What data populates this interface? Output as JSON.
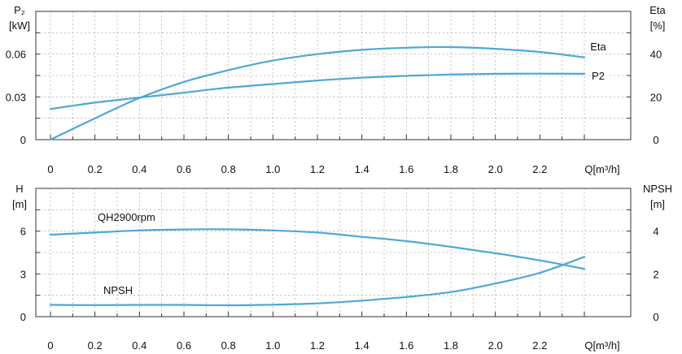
{
  "colors": {
    "curve": "#4ea7d8",
    "frame": "#333333",
    "grid": "#9a9a9a"
  },
  "chart_data": [
    {
      "type": "line",
      "left_axis": {
        "label_line1": "P₂",
        "label_line2": "[kW]",
        "range": [
          0,
          0.09
        ],
        "ticks": [
          "0",
          "0.03",
          "0.06"
        ],
        "tick_values": [
          0,
          0.03,
          0.06
        ]
      },
      "right_axis": {
        "label_line1": "Eta",
        "label_line2": "[%]",
        "range": [
          0,
          60
        ],
        "ticks": [
          "0",
          "20",
          "40"
        ],
        "tick_values": [
          0,
          20,
          40
        ]
      },
      "x_axis": {
        "label": "Q[m³/h]",
        "range": [
          0,
          2.4
        ],
        "ticks": [
          "0",
          "0.2",
          "0.4",
          "0.6",
          "0.8",
          "1.0",
          "1.2",
          "1.4",
          "1.6",
          "1.8",
          "2.0",
          "2.2"
        ],
        "tick_values": [
          0,
          0.2,
          0.4,
          0.6,
          0.8,
          1.0,
          1.2,
          1.4,
          1.6,
          1.8,
          2.0,
          2.2
        ]
      },
      "grid": true,
      "series": [
        {
          "name": "Eta",
          "axis": "right",
          "x": [
            0,
            0.2,
            0.4,
            0.6,
            0.8,
            1.0,
            1.2,
            1.4,
            1.6,
            1.8,
            2.0,
            2.2,
            2.4
          ],
          "values": [
            0,
            10,
            19.5,
            27,
            32.5,
            37,
            40,
            42,
            43,
            43.3,
            42.5,
            41,
            38.5
          ]
        },
        {
          "name": "P2",
          "axis": "left",
          "x": [
            0,
            0.2,
            0.4,
            0.6,
            0.8,
            1.0,
            1.2,
            1.4,
            1.6,
            1.8,
            2.0,
            2.2,
            2.4
          ],
          "values": [
            0.0215,
            0.026,
            0.0295,
            0.033,
            0.0365,
            0.039,
            0.0415,
            0.0435,
            0.0448,
            0.0457,
            0.0462,
            0.0463,
            0.0462
          ]
        }
      ]
    },
    {
      "type": "line",
      "left_axis": {
        "label_line1": "H",
        "label_line2": "[m]",
        "range": [
          0,
          9
        ],
        "ticks": [
          "0",
          "3",
          "6"
        ],
        "tick_values": [
          0,
          3,
          6
        ]
      },
      "right_axis": {
        "label_line1": "NPSH",
        "label_line2": "[m]",
        "range": [
          0,
          6
        ],
        "ticks": [
          "0",
          "2",
          "4"
        ],
        "tick_values": [
          0,
          2,
          4
        ]
      },
      "x_axis": {
        "label": "Q[m³/h]",
        "range": [
          0,
          2.4
        ],
        "ticks": [
          "0",
          "0.2",
          "0.4",
          "0.6",
          "0.8",
          "1.0",
          "1.2",
          "1.4",
          "1.6",
          "1.8",
          "2.0",
          "2.2"
        ],
        "tick_values": [
          0,
          0.2,
          0.4,
          0.6,
          0.8,
          1.0,
          1.2,
          1.4,
          1.6,
          1.8,
          2.0,
          2.2
        ]
      },
      "grid": true,
      "series": [
        {
          "name": "QH2900rpm",
          "axis": "left",
          "x": [
            0,
            0.2,
            0.4,
            0.6,
            0.8,
            1.0,
            1.2,
            1.4,
            1.6,
            1.8,
            2.0,
            2.2,
            2.4
          ],
          "values": [
            5.75,
            5.9,
            6.05,
            6.12,
            6.13,
            6.05,
            5.9,
            5.6,
            5.3,
            4.9,
            4.45,
            3.95,
            3.35
          ]
        },
        {
          "name": "NPSH",
          "axis": "right",
          "x": [
            0,
            0.2,
            0.4,
            0.6,
            0.8,
            1.0,
            1.2,
            1.4,
            1.6,
            1.8,
            2.0,
            2.2,
            2.4
          ],
          "values": [
            0.55,
            0.54,
            0.55,
            0.55,
            0.53,
            0.56,
            0.62,
            0.75,
            0.92,
            1.15,
            1.55,
            2.05,
            2.8
          ]
        }
      ]
    }
  ]
}
